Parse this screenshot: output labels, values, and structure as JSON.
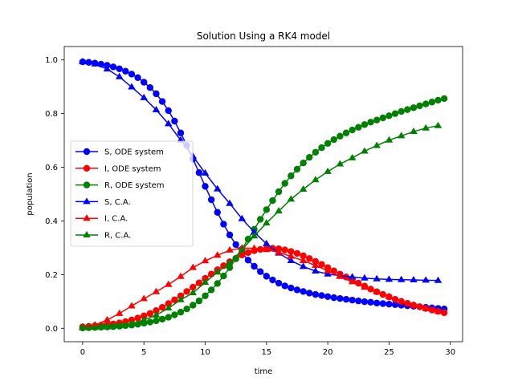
{
  "chart_data": {
    "type": "line",
    "title": "Solution Using a RK4 model",
    "xlabel": "time",
    "ylabel": "population",
    "xlim": [
      -1.5,
      31
    ],
    "ylim": [
      -0.05,
      1.05
    ],
    "xticks": [
      0,
      5,
      10,
      15,
      20,
      25,
      30
    ],
    "yticks": [
      0.0,
      0.2,
      0.4,
      0.6,
      0.8,
      1.0
    ],
    "xtick_labels": [
      "0",
      "5",
      "10",
      "15",
      "20",
      "25",
      "30"
    ],
    "ytick_labels": [
      "0.0",
      "0.2",
      "0.4",
      "0.6",
      "0.8",
      "1.0"
    ],
    "grid": false,
    "legend_position": "center-left",
    "ode_x": [
      0,
      0.5,
      1,
      1.5,
      2,
      2.5,
      3,
      3.5,
      4,
      4.5,
      5,
      5.5,
      6,
      6.5,
      7,
      7.5,
      8,
      8.5,
      9,
      9.5,
      10,
      10.5,
      11,
      11.5,
      12,
      12.5,
      13,
      13.5,
      14,
      14.5,
      15,
      15.5,
      16,
      16.5,
      17,
      17.5,
      18,
      18.5,
      19,
      19.5,
      20,
      20.5,
      21,
      21.5,
      22,
      22.5,
      23,
      23.5,
      24,
      24.5,
      25,
      25.5,
      26,
      26.5,
      27,
      27.5,
      28,
      28.5,
      29,
      29.5
    ],
    "ca_x": [
      0,
      1,
      2,
      3,
      4,
      5,
      6,
      7,
      8,
      9,
      10,
      11,
      12,
      13,
      14,
      15,
      16,
      17,
      18,
      19,
      20,
      21,
      22,
      23,
      24,
      25,
      26,
      27,
      28,
      29
    ],
    "series": [
      {
        "name": "S, ODE system",
        "group": "ode",
        "color": "#0000ff",
        "marker": "circle",
        "values": [
          0.993,
          0.991,
          0.988,
          0.984,
          0.98,
          0.974,
          0.967,
          0.958,
          0.947,
          0.934,
          0.917,
          0.897,
          0.874,
          0.845,
          0.811,
          0.772,
          0.728,
          0.681,
          0.631,
          0.58,
          0.529,
          0.479,
          0.432,
          0.388,
          0.348,
          0.312,
          0.281,
          0.254,
          0.231,
          0.211,
          0.194,
          0.18,
          0.168,
          0.158,
          0.15,
          0.143,
          0.137,
          0.131,
          0.126,
          0.122,
          0.118,
          0.114,
          0.111,
          0.108,
          0.105,
          0.102,
          0.099,
          0.097,
          0.094,
          0.092,
          0.09,
          0.088,
          0.086,
          0.084,
          0.082,
          0.08,
          0.078,
          0.076,
          0.074,
          0.072
        ]
      },
      {
        "name": "I, ODE system",
        "group": "ode",
        "color": "#ff0000",
        "marker": "circle",
        "values": [
          0.005,
          0.007,
          0.009,
          0.011,
          0.013,
          0.016,
          0.02,
          0.025,
          0.031,
          0.038,
          0.046,
          0.055,
          0.066,
          0.078,
          0.092,
          0.106,
          0.121,
          0.137,
          0.153,
          0.169,
          0.186,
          0.202,
          0.218,
          0.233,
          0.248,
          0.261,
          0.273,
          0.282,
          0.289,
          0.294,
          0.297,
          0.298,
          0.296,
          0.292,
          0.286,
          0.279,
          0.27,
          0.26,
          0.249,
          0.238,
          0.226,
          0.214,
          0.202,
          0.191,
          0.179,
          0.168,
          0.157,
          0.146,
          0.136,
          0.126,
          0.117,
          0.108,
          0.1,
          0.093,
          0.086,
          0.08,
          0.074,
          0.068,
          0.063,
          0.058
        ]
      },
      {
        "name": "R, ODE system",
        "group": "ode",
        "color": "#008000",
        "marker": "circle",
        "values": [
          0.001,
          0.002,
          0.003,
          0.004,
          0.005,
          0.006,
          0.008,
          0.01,
          0.012,
          0.015,
          0.019,
          0.023,
          0.028,
          0.034,
          0.041,
          0.05,
          0.06,
          0.072,
          0.086,
          0.102,
          0.121,
          0.143,
          0.167,
          0.195,
          0.226,
          0.259,
          0.295,
          0.332,
          0.369,
          0.406,
          0.442,
          0.476,
          0.509,
          0.54,
          0.568,
          0.593,
          0.616,
          0.637,
          0.656,
          0.673,
          0.689,
          0.703,
          0.716,
          0.728,
          0.739,
          0.749,
          0.759,
          0.768,
          0.776,
          0.784,
          0.792,
          0.8,
          0.808,
          0.815,
          0.822,
          0.829,
          0.836,
          0.843,
          0.85,
          0.856
        ]
      },
      {
        "name": "S, C.A.",
        "group": "ca",
        "color": "#0000ff",
        "marker": "triangle",
        "values": [
          0.993,
          0.985,
          0.966,
          0.937,
          0.899,
          0.859,
          0.814,
          0.762,
          0.701,
          0.641,
          0.578,
          0.519,
          0.465,
          0.408,
          0.358,
          0.315,
          0.28,
          0.252,
          0.23,
          0.213,
          0.202,
          0.196,
          0.191,
          0.187,
          0.184,
          0.182,
          0.181,
          0.18,
          0.179,
          0.178
        ]
      },
      {
        "name": "I, C.A.",
        "group": "ca",
        "color": "#ff0000",
        "marker": "triangle",
        "values": [
          0.005,
          0.012,
          0.031,
          0.055,
          0.083,
          0.11,
          0.136,
          0.163,
          0.193,
          0.226,
          0.251,
          0.272,
          0.291,
          0.299,
          0.298,
          0.293,
          0.283,
          0.268,
          0.252,
          0.234,
          0.214,
          0.193,
          0.173,
          0.153,
          0.135,
          0.117,
          0.1,
          0.086,
          0.073,
          0.062
        ]
      },
      {
        "name": "R, C.A.",
        "group": "ca",
        "color": "#008000",
        "marker": "triangle",
        "values": [
          0.002,
          0.003,
          0.005,
          0.009,
          0.017,
          0.031,
          0.049,
          0.075,
          0.106,
          0.132,
          0.171,
          0.209,
          0.244,
          0.292,
          0.344,
          0.392,
          0.437,
          0.481,
          0.518,
          0.553,
          0.584,
          0.612,
          0.635,
          0.66,
          0.681,
          0.701,
          0.717,
          0.733,
          0.746,
          0.755
        ]
      }
    ]
  }
}
